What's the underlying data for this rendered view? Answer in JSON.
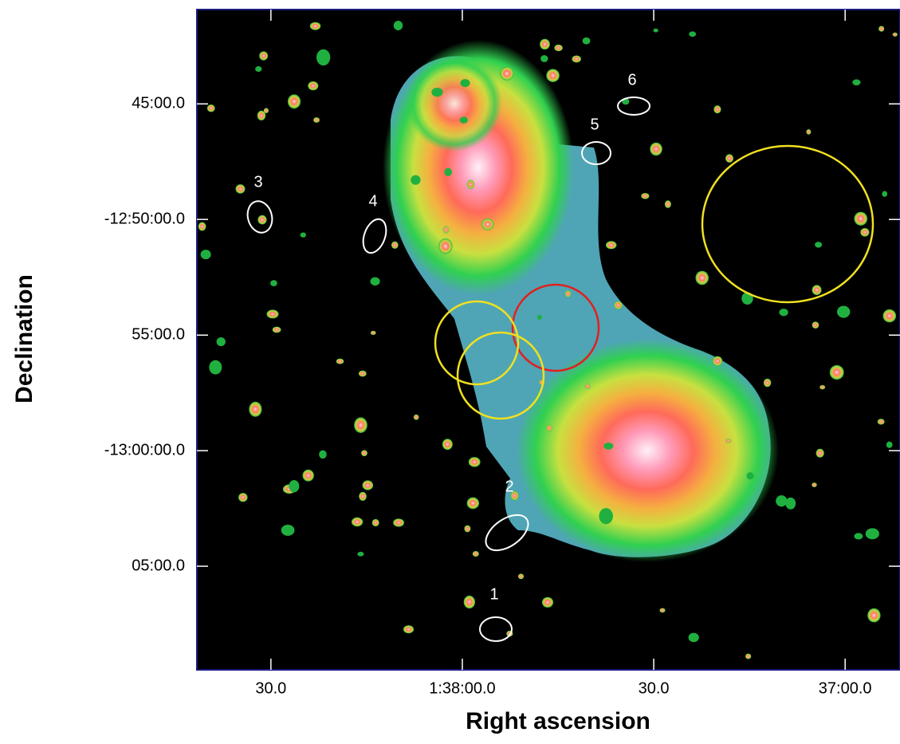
{
  "chart_data": {
    "type": "image",
    "xlabel": "Right ascension",
    "ylabel": "Declination",
    "xlim": [
      5921.6,
      5811.4
    ],
    "ylim": [
      -12.682,
      -13.158
    ],
    "xticks": [
      {
        "value": 5910,
        "label": "30.0"
      },
      {
        "value": 5880,
        "label": "1:38:00.0"
      },
      {
        "value": 5850,
        "label": "30.0"
      },
      {
        "value": 5820,
        "label": "37:00.0"
      }
    ],
    "yticks": [
      {
        "value": -12.75,
        "label": "45:00.0"
      },
      {
        "value": -12.8333,
        "label": "-12:50:00.0"
      },
      {
        "value": -12.9167,
        "label": "55:00.0"
      },
      {
        "value": -13.0,
        "label": "-13:00:00.0"
      },
      {
        "value": -13.0833,
        "label": "05:00.0"
      }
    ],
    "annotations": [
      "1",
      "2",
      "3",
      "4",
      "5",
      "6"
    ]
  }
}
